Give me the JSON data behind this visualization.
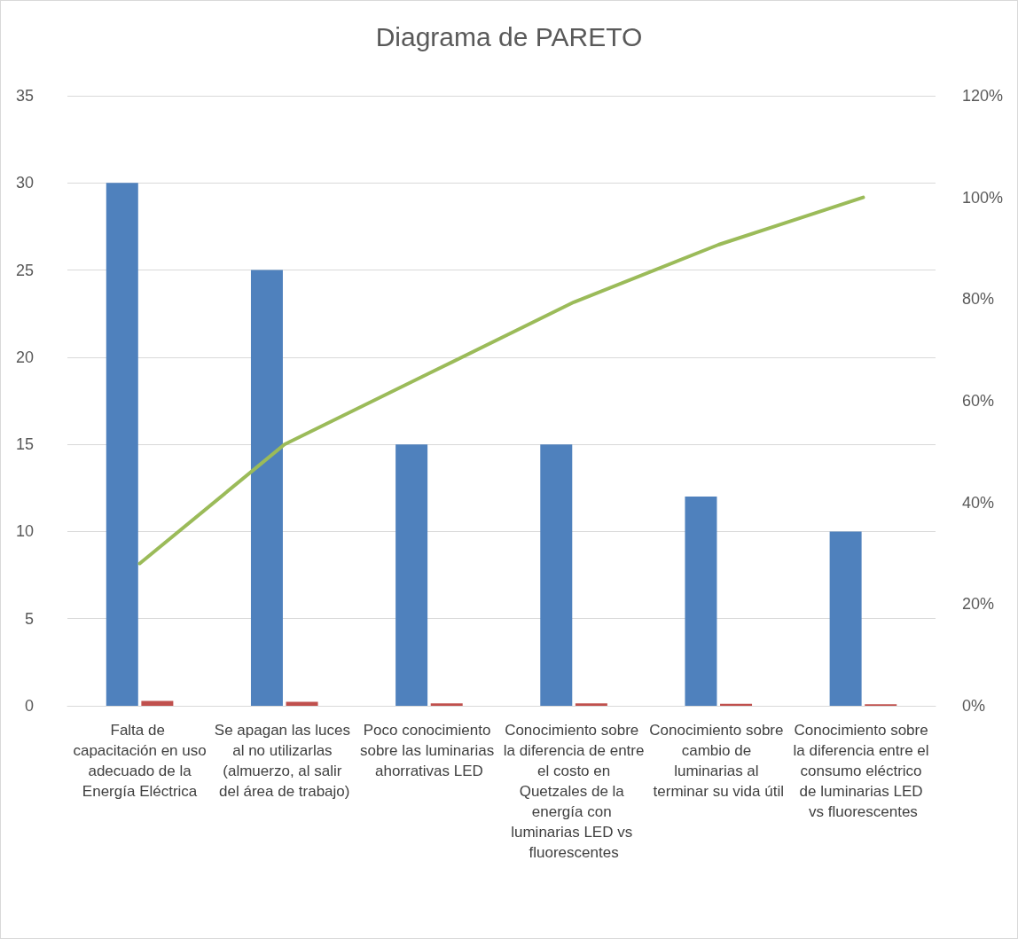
{
  "chart_data": {
    "type": "bar",
    "title": "Diagrama de PARETO",
    "categories": [
      "Falta de capacitación en uso adecuado de la Energía Eléctrica",
      "Se apagan las luces al no utilizarlas (almuerzo, al salir del área de trabajo)",
      "Poco conocimiento sobre las luminarias ahorrativas LED",
      "Conocimiento sobre la diferencia de entre el costo en Quetzales de la energía con luminarias LED vs fluorescentes",
      "Conocimiento sobre cambio de luminarias al terminar su vida útil",
      "Conocimiento sobre la diferencia entre el consumo eléctrico de luminarias LED vs fluorescentes"
    ],
    "series": [
      {
        "color": "#4f81bd",
        "values": [
          30,
          25,
          15,
          15,
          12,
          10
        ]
      },
      {
        "color": "#c0504d",
        "values": [
          0.28,
          0.23,
          0.14,
          0.14,
          0.11,
          0.09
        ]
      },
      {
        "type": "line",
        "axis": "y2",
        "color": "#9bbb59",
        "values": [
          28,
          51.4,
          65.4,
          79.4,
          90.7,
          100
        ]
      }
    ],
    "ylim": [
      0,
      35
    ],
    "yticks": [
      0,
      5,
      10,
      15,
      20,
      25,
      30,
      35
    ],
    "y2lim": [
      0,
      120
    ],
    "y2ticks": [
      {
        "value": 0,
        "label": "0%"
      },
      {
        "value": 20,
        "label": "20%"
      },
      {
        "value": 40,
        "label": "40%"
      },
      {
        "value": 60,
        "label": "60%"
      },
      {
        "value": 80,
        "label": "80%"
      },
      {
        "value": 100,
        "label": "100%"
      },
      {
        "value": 120,
        "label": "120%"
      }
    ],
    "grid": "y",
    "marker": "none",
    "line_style": "solid"
  }
}
